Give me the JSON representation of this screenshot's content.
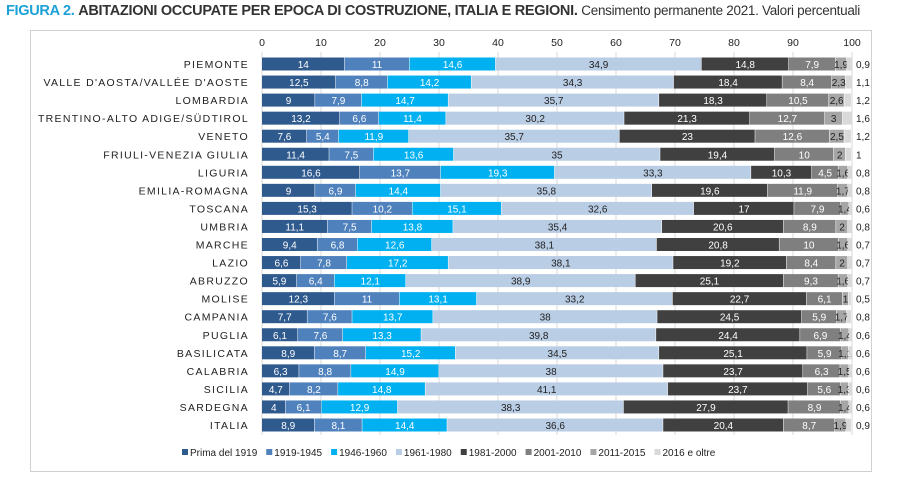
{
  "title": {
    "figure": "FIGURA 2.",
    "main": "ABITAZIONI OCCUPATE PER EPOCA DI COSTRUZIONE, ITALIA E REGIONI.",
    "sub": "Censimento permanente 2021. Valori percentuali"
  },
  "chart_data": {
    "type": "bar",
    "orientation": "horizontal",
    "stacked": true,
    "xlim": [
      0,
      100
    ],
    "xticks": [
      0,
      10,
      20,
      30,
      40,
      50,
      60,
      70,
      80,
      90,
      100
    ],
    "grid": true,
    "legend_position": "bottom",
    "categories": [
      "PIEMONTE",
      "VALLE D'AOSTA/VALLÉE D'AOSTE",
      "LOMBARDIA",
      "TRENTINO-ALTO ADIGE/SÜDTIROL",
      "VENETO",
      "FRIULI-VENEZIA GIULIA",
      "LIGURIA",
      "EMILIA-ROMAGNA",
      "TOSCANA",
      "UMBRIA",
      "MARCHE",
      "LAZIO",
      "ABRUZZO",
      "MOLISE",
      "CAMPANIA",
      "PUGLIA",
      "BASILICATA",
      "CALABRIA",
      "SICILIA",
      "SARDEGNA",
      "ITALIA"
    ],
    "series": [
      {
        "name": "Prima del 1919",
        "color": "#2f5a8e",
        "values": [
          14,
          12.5,
          9,
          13.2,
          7.6,
          11.4,
          16.6,
          9,
          15.3,
          11.1,
          9.4,
          6.6,
          5.9,
          12.3,
          7.7,
          6.1,
          8.9,
          6.3,
          4.7,
          4,
          8.9
        ]
      },
      {
        "name": "1919-1945",
        "color": "#4f81bd",
        "values": [
          11,
          8.8,
          7.9,
          6.6,
          5.4,
          7.5,
          13.7,
          6.9,
          10.2,
          7.5,
          6.8,
          7.8,
          6.4,
          11,
          7.6,
          7.6,
          8.7,
          8.8,
          8.2,
          6.1,
          8.1
        ]
      },
      {
        "name": "1946-1960",
        "color": "#00b0f0",
        "values": [
          14.6,
          14.2,
          14.7,
          11.4,
          11.9,
          13.6,
          19.3,
          14.4,
          15.1,
          13.8,
          12.6,
          17.2,
          12.1,
          13.1,
          13.7,
          13.3,
          15.2,
          14.9,
          14.8,
          12.9,
          14.4
        ]
      },
      {
        "name": "1961-1980",
        "color": "#b9cde5",
        "values": [
          34.9,
          34.3,
          35.7,
          30.2,
          35.7,
          35,
          33.3,
          35.8,
          32.6,
          35.4,
          38.1,
          38.1,
          38.9,
          33.2,
          38,
          39.8,
          34.5,
          38,
          41.1,
          38.3,
          36.6
        ]
      },
      {
        "name": "1981-2000",
        "color": "#404040",
        "values": [
          14.8,
          18.4,
          18.3,
          21.3,
          23,
          19.4,
          10.3,
          19.6,
          17,
          20.6,
          20.8,
          19.2,
          25.1,
          22.7,
          24.5,
          24.4,
          25.1,
          23.7,
          23.7,
          27.9,
          20.4
        ]
      },
      {
        "name": "2001-2010",
        "color": "#7f7f7f",
        "values": [
          7.9,
          8.4,
          10.5,
          12.7,
          12.6,
          10,
          4.5,
          11.9,
          7.9,
          8.9,
          10,
          8.4,
          9.3,
          6.1,
          5.9,
          6.9,
          5.9,
          6.3,
          5.6,
          8.9,
          8.7
        ]
      },
      {
        "name": "2011-2015",
        "color": "#a6a6a6",
        "values": [
          1.9,
          2.3,
          2.6,
          3,
          2.5,
          2,
          1.6,
          1.7,
          1.4,
          2,
          1.6,
          2,
          1.6,
          1,
          1.7,
          1.4,
          1.1,
          1.5,
          1.3,
          1.4,
          1.9
        ]
      },
      {
        "name": "2016 e oltre",
        "color": "#d9d9d9",
        "values": [
          0.9,
          1.1,
          1.2,
          1.6,
          1.2,
          1,
          0.8,
          0.8,
          0.6,
          0.8,
          0.7,
          0.7,
          0.7,
          0.5,
          0.8,
          0.6,
          0.6,
          0.6,
          0.6,
          0.6,
          0.9
        ]
      }
    ]
  }
}
